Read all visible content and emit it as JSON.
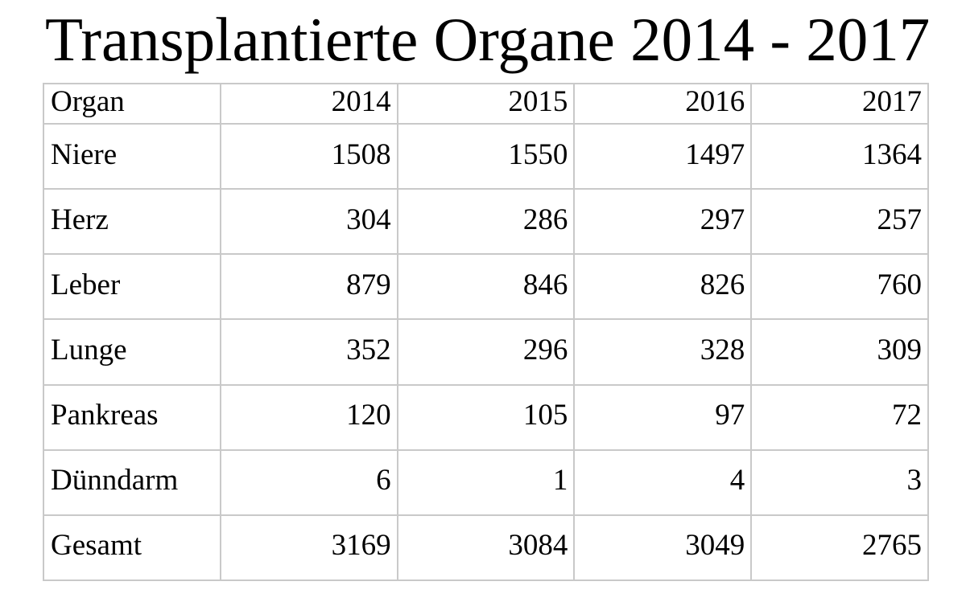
{
  "title": "Transplantierte Organe 2014 - 2017",
  "colors": {
    "page_background": "#ffffff",
    "table_border": "#c9c9c9",
    "text": "#000000"
  },
  "table": {
    "header": [
      "Organ",
      "2014",
      "2015",
      "2016",
      "2017"
    ],
    "rows": [
      [
        "Niere",
        "1508",
        "1550",
        "1497",
        "1364"
      ],
      [
        "Herz",
        "304",
        "286",
        "297",
        "257"
      ],
      [
        "Leber",
        "879",
        "846",
        "826",
        "760"
      ],
      [
        "Lunge",
        "352",
        "296",
        "328",
        "309"
      ],
      [
        "Pankreas",
        "120",
        "105",
        "97",
        "72"
      ],
      [
        "Dünndarm",
        "6",
        "1",
        "4",
        "3"
      ],
      [
        "Gesamt",
        "3169",
        "3084",
        "3049",
        "2765"
      ]
    ]
  }
}
